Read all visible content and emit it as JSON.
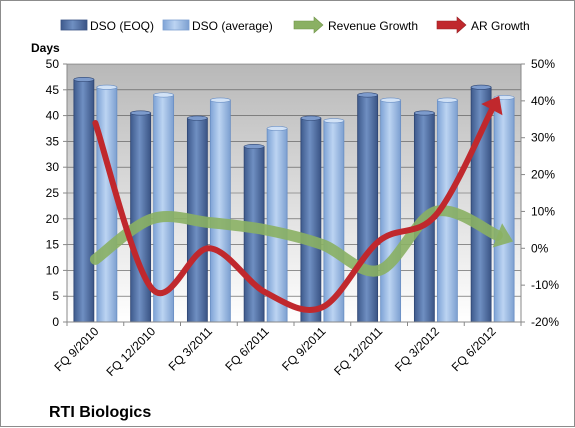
{
  "chart_data": {
    "type": "bar",
    "title": "RTI Biologics",
    "ylabel": "Days",
    "categories": [
      "FQ 9/2010",
      "FQ 12/2010",
      "FQ 3/2011",
      "FQ 6/2011",
      "FQ 9/2011",
      "FQ 12/2011",
      "FQ 3/2012",
      "FQ 6/2012"
    ],
    "ylim": [
      0,
      50
    ],
    "yticks": [
      0,
      5,
      10,
      15,
      20,
      25,
      30,
      35,
      40,
      45,
      50
    ],
    "y2lim": [
      -20,
      50
    ],
    "y2ticks": [
      "-20%",
      "-10%",
      "0%",
      "10%",
      "20%",
      "30%",
      "40%",
      "50%"
    ],
    "y2values": [
      -20,
      -10,
      0,
      10,
      20,
      30,
      40,
      50
    ],
    "grid": true,
    "legend": "top",
    "series": [
      {
        "name": "DSO (EOQ)",
        "type": "bar",
        "axis": "left",
        "color": "#4f6fa3",
        "values": [
          47,
          40.5,
          39.5,
          34,
          39.5,
          44,
          40.5,
          45.5
        ]
      },
      {
        "name": "DSO (average)",
        "type": "bar",
        "axis": "left",
        "color": "#8fb4e3",
        "values": [
          45.5,
          44,
          43,
          37.5,
          39,
          43,
          43,
          43.5
        ]
      },
      {
        "name": "Revenue Growth",
        "type": "line",
        "axis": "right",
        "color": "#7fa65a",
        "values": [
          -3,
          8,
          7,
          5,
          1,
          -6,
          10,
          4
        ]
      },
      {
        "name": "AR Growth",
        "type": "line",
        "axis": "right",
        "color": "#c0282d",
        "values": [
          34,
          -11,
          0,
          -12,
          -16,
          2,
          9,
          38
        ]
      }
    ]
  }
}
